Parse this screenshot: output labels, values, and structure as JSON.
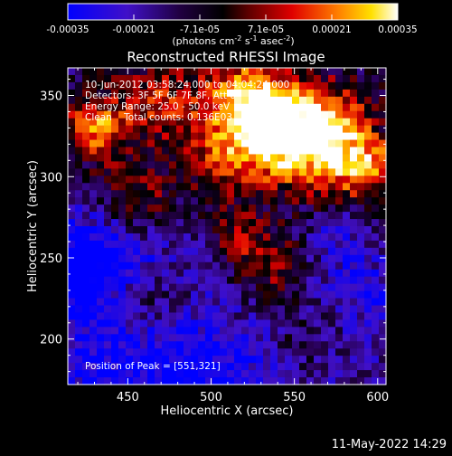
{
  "colorbar": {
    "ticks": [
      "-0.00035",
      "-0.00021",
      "-7.1e-05",
      "7.1e-05",
      "0.00021",
      "0.00035"
    ],
    "units_main": "(photons cm",
    "units_sup1": "-2",
    "units_mid": " s",
    "units_sup2": "-1",
    "units_mid2": " asec",
    "units_sup3": "-2",
    "units_end": ")",
    "range": [
      -0.00035,
      0.00035
    ]
  },
  "chart_data": {
    "type": "heatmap",
    "title": "Reconstructed RHESSI Image",
    "xlabel": "Heliocentric X (arcsec)",
    "ylabel": "Heliocentric Y (arcsec)",
    "xlim": [
      414,
      605
    ],
    "ylim": [
      172,
      367
    ],
    "xticks": [
      450,
      500,
      550,
      600
    ],
    "yticks": [
      200,
      250,
      300,
      350
    ],
    "peak_position": [
      551,
      321
    ],
    "colormap": "Rainbow+black (IDL-style: blue-purple-black-red-orange-yellow-white)",
    "annotations": [
      "10-Jun-2012 03:58:24.000 to 04:04:24.000",
      "Detectors: 3F 5F 6F 7F 8F, Att 0",
      "Energy Range: 25.0 - 50.0 keV",
      "Clean    Total counts: 0.136E03"
    ],
    "peak_label": "Position of Peak = [551,321]"
  },
  "footer": {
    "timestamp": "11-May-2022 14:29"
  }
}
